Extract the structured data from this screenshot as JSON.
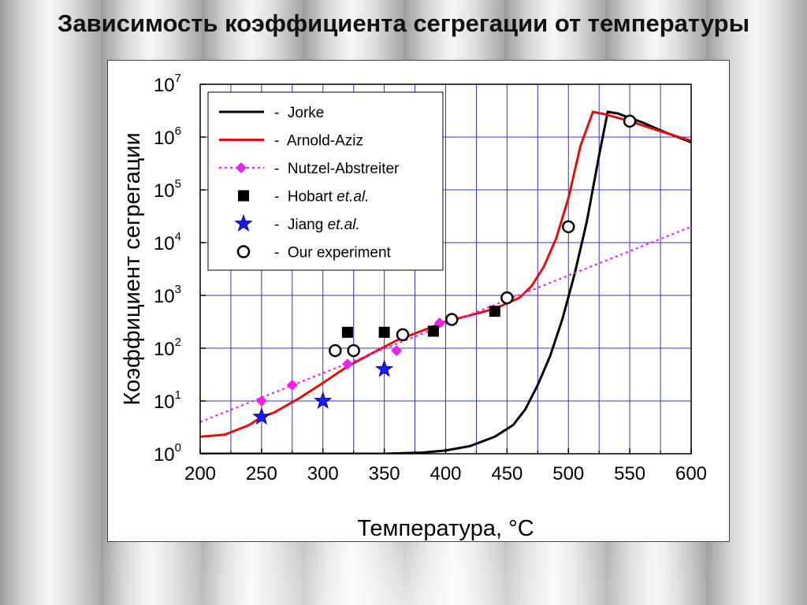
{
  "slide": {
    "title": "Зависимость коэффициента сегрегации от температуры"
  },
  "colors": {
    "grid": "#3333cc",
    "jorke": "#000000",
    "arnold_aziz": "#e01010",
    "nutzel": "#ee22ee",
    "hobart": "#000000",
    "jiang": "#1a1aee",
    "experiment": "#000000"
  },
  "chart_data": {
    "type": "line",
    "title": "",
    "xlabel": "Температура, °C",
    "ylabel": "Коэффициент сегрегации",
    "xlim": [
      200,
      600
    ],
    "ylim": [
      1,
      10000000
    ],
    "y_scale": "log",
    "grid": true,
    "legend_position": "top-left",
    "x_ticks": [
      "200",
      "250",
      "300",
      "350",
      "400",
      "450",
      "500",
      "550",
      "600"
    ],
    "y_ticks": [
      {
        "base": "10",
        "exp": "0"
      },
      {
        "base": "10",
        "exp": "1"
      },
      {
        "base": "10",
        "exp": "2"
      },
      {
        "base": "10",
        "exp": "3"
      },
      {
        "base": "10",
        "exp": "4"
      },
      {
        "base": "10",
        "exp": "5"
      },
      {
        "base": "10",
        "exp": "6"
      },
      {
        "base": "10",
        "exp": "7"
      }
    ],
    "series": [
      {
        "name": "Jorke",
        "legend_label": "-  Jorke",
        "style": "solid-line",
        "x": [
          200,
          300,
          350,
          380,
          400,
          420,
          440,
          455,
          465,
          475,
          485,
          495,
          505,
          515,
          525,
          532,
          540,
          560,
          580,
          600
        ],
        "y": [
          1,
          1,
          1,
          1.05,
          1.15,
          1.4,
          2.1,
          3.5,
          7,
          20,
          70,
          350,
          2500,
          25000,
          450000,
          3000000,
          2800000,
          1900000,
          1200000,
          800000
        ]
      },
      {
        "name": "Arnold-Aziz",
        "legend_label": "-  Arnold-Aziz",
        "style": "solid-line",
        "x": [
          200,
          220,
          240,
          250,
          260,
          280,
          300,
          320,
          340,
          360,
          380,
          400,
          420,
          440,
          460,
          470,
          480,
          490,
          500,
          510,
          520,
          530,
          550,
          570,
          600
        ],
        "y": [
          2.1,
          2.3,
          3.5,
          5,
          6,
          11,
          22,
          45,
          80,
          140,
          210,
          320,
          420,
          560,
          900,
          1500,
          3500,
          12000,
          70000,
          700000,
          3000000,
          2700000,
          2000000,
          1400000,
          850000
        ]
      },
      {
        "name": "Nutzel-Abstreiter",
        "legend_label": "-  Nutzel-Abstreiter",
        "style": "dotted-line",
        "x": [
          200,
          600
        ],
        "y": [
          4,
          20000
        ]
      },
      {
        "name": "Nutzel-Abstreiter points",
        "style": "diamond-markers",
        "x": [
          250,
          275,
          320,
          360,
          395
        ],
        "y": [
          10,
          20,
          50,
          90,
          300
        ]
      },
      {
        "name": "Hobart",
        "legend_label": "-  Hobart ",
        "legend_italic": "et.al.",
        "style": "square-markers",
        "x": [
          320,
          350,
          390,
          440
        ],
        "y": [
          200,
          200,
          210,
          500
        ]
      },
      {
        "name": "Jiang",
        "legend_label": "-  Jiang ",
        "legend_italic": "et.al.",
        "style": "star-markers",
        "x": [
          250,
          300,
          350
        ],
        "y": [
          5,
          10,
          40
        ]
      },
      {
        "name": "Our experiment",
        "legend_label": "-  Our experiment",
        "style": "circle-markers",
        "x": [
          310,
          325,
          365,
          405,
          450,
          500,
          550
        ],
        "y": [
          90,
          90,
          180,
          350,
          900,
          20000,
          2000000
        ]
      }
    ]
  }
}
